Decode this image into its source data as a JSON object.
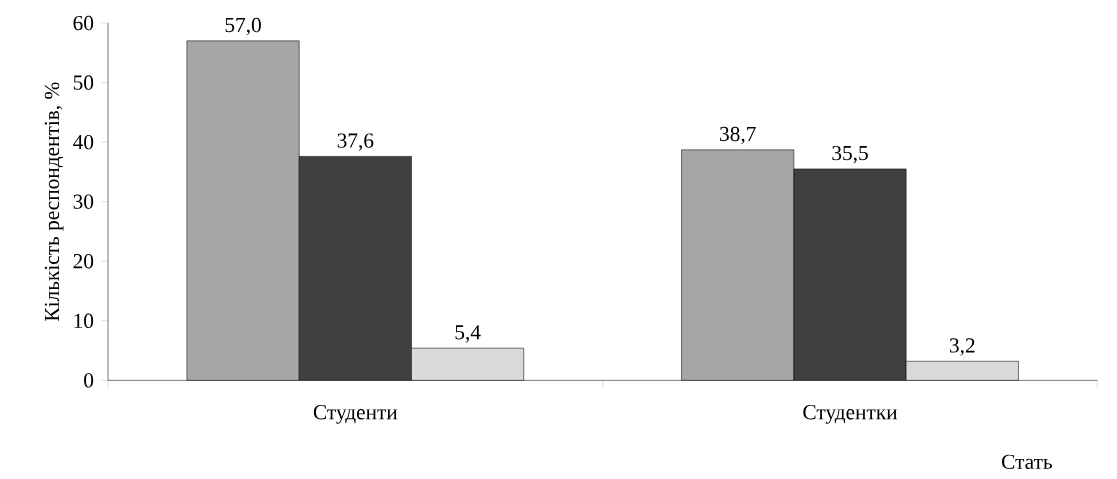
{
  "chart_data": {
    "type": "bar",
    "xlabel": "Стать",
    "ylabel": "Кількість респондентів, %",
    "categories": [
      "Студенти",
      "Студентки"
    ],
    "series": [
      {
        "color": "#a6a6a6",
        "values": [
          57.0,
          38.7
        ],
        "value_labels": [
          "57,0",
          "38,7"
        ]
      },
      {
        "color": "#404040",
        "values": [
          37.6,
          35.5
        ],
        "value_labels": [
          "37,6",
          "35,5"
        ]
      },
      {
        "color": "#d9d9d9",
        "values": [
          5.4,
          3.2
        ],
        "value_labels": [
          "5,4",
          "3,2"
        ]
      }
    ],
    "ylim": [
      0,
      60
    ],
    "yticks": [
      0,
      10,
      20,
      30,
      40,
      50,
      60
    ],
    "grid": false
  }
}
